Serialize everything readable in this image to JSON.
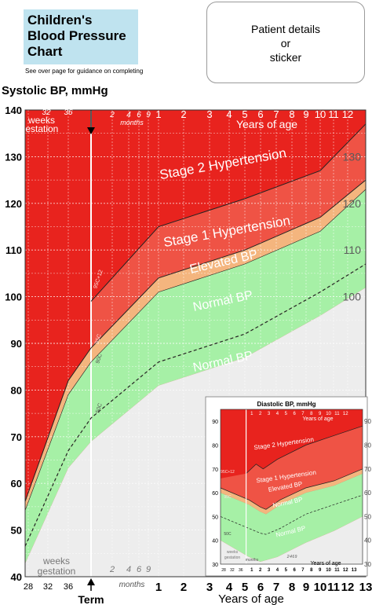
{
  "header": {
    "title_lines": [
      "Children's",
      "Blood Pressure",
      "Chart"
    ],
    "note": "See over page for guidance on completing",
    "patient_lines": [
      "Patient details",
      "or",
      "sticker"
    ]
  },
  "colors": {
    "stage2": "#e8231e",
    "stage1": "#ef5345",
    "elevated": "#f4b57e",
    "normal": "#a6f0a6",
    "normal_light": "#dff8df",
    "below": "#ededed"
  },
  "chart_data": [
    {
      "type": "area",
      "title": "",
      "ylabel": "Systolic BP, mmHg",
      "ylim": [
        40,
        140
      ],
      "y_ticks": [
        40,
        50,
        60,
        70,
        80,
        90,
        100,
        110,
        120,
        130,
        140
      ],
      "x_ticks_weeks": [
        "28",
        "32",
        "36"
      ],
      "x_ticks_months": [
        "2",
        "4",
        "6",
        "9"
      ],
      "x_ticks_years": [
        "1",
        "2",
        "3",
        "4",
        "5",
        "6",
        "7",
        "8",
        "9",
        "10",
        "11",
        "12",
        "13"
      ],
      "top_ticks_weeks": [
        "32",
        "36"
      ],
      "top_ticks_months": [
        "2",
        "4",
        "6",
        "9"
      ],
      "top_ticks_years": [
        "1",
        "2",
        "3",
        "4",
        "5",
        "6",
        "7",
        "8",
        "9",
        "10",
        "11",
        "12"
      ],
      "labels": {
        "weeks_gestation_top": [
          "weeks",
          "gestation"
        ],
        "weeks_gestation_bottom": [
          "weeks",
          "gestation"
        ],
        "months_top": "months",
        "months_bottom": "months",
        "years_top": "Years of age",
        "years_bottom": "Years of age",
        "term": "Term",
        "right_axis": [
          "130",
          "120",
          "110",
          "100"
        ]
      },
      "bands": [
        "Stage 2 Hypertension",
        "Stage 1 Hypertension",
        "Elevated BP",
        "Normal BP",
        "Normal BP"
      ],
      "centile_labels": [
        "95C+12",
        "95C",
        "90C",
        "50C"
      ],
      "series": [
        {
          "name": "95C+12",
          "x": [
            "Term",
            "1",
            "5",
            "10",
            "13"
          ],
          "values": [
            99,
            115,
            121,
            127,
            137
          ]
        },
        {
          "name": "95C",
          "x": [
            "28",
            "36",
            "Term",
            "1",
            "5",
            "10",
            "13"
          ],
          "values": [
            58,
            82,
            89,
            104,
            110,
            117,
            125
          ]
        },
        {
          "name": "90C",
          "x": [
            "28",
            "36",
            "Term",
            "1",
            "5",
            "10",
            "13"
          ],
          "values": [
            56,
            79,
            86,
            101,
            107,
            114,
            123
          ]
        },
        {
          "name": "50C",
          "x": [
            "28",
            "36",
            "Term",
            "1",
            "5",
            "10",
            "13"
          ],
          "values": [
            48,
            67,
            74,
            86,
            92,
            101,
            107
          ]
        }
      ]
    },
    {
      "type": "area",
      "title": "Diastolic BP, mmHg",
      "ylim": [
        30,
        95
      ],
      "y_ticks": [
        30,
        40,
        50,
        60,
        70,
        80,
        90
      ],
      "right_ticks": [
        30,
        40,
        50,
        60,
        70,
        80,
        90
      ],
      "x_ticks_weeks": [
        "28",
        "32",
        "36"
      ],
      "x_ticks_months": [
        "2",
        "4",
        "6",
        "9"
      ],
      "x_ticks_years": [
        "1",
        "2",
        "3",
        "4",
        "5",
        "6",
        "7",
        "8",
        "9",
        "10",
        "11",
        "12",
        "13"
      ],
      "labels": {
        "years_top": "Years of age",
        "years_bottom": "Years of age",
        "months": "months",
        "weeks_gestation": [
          "weeks",
          "gestation"
        ]
      },
      "bands": [
        "Stage 2 Hypertension",
        "Stage 1 Hypertension",
        "Elevated BP",
        "Normal BP",
        "Normal BP"
      ],
      "centile_labels": [
        "95C+12",
        "95C",
        "50C"
      ]
    }
  ]
}
